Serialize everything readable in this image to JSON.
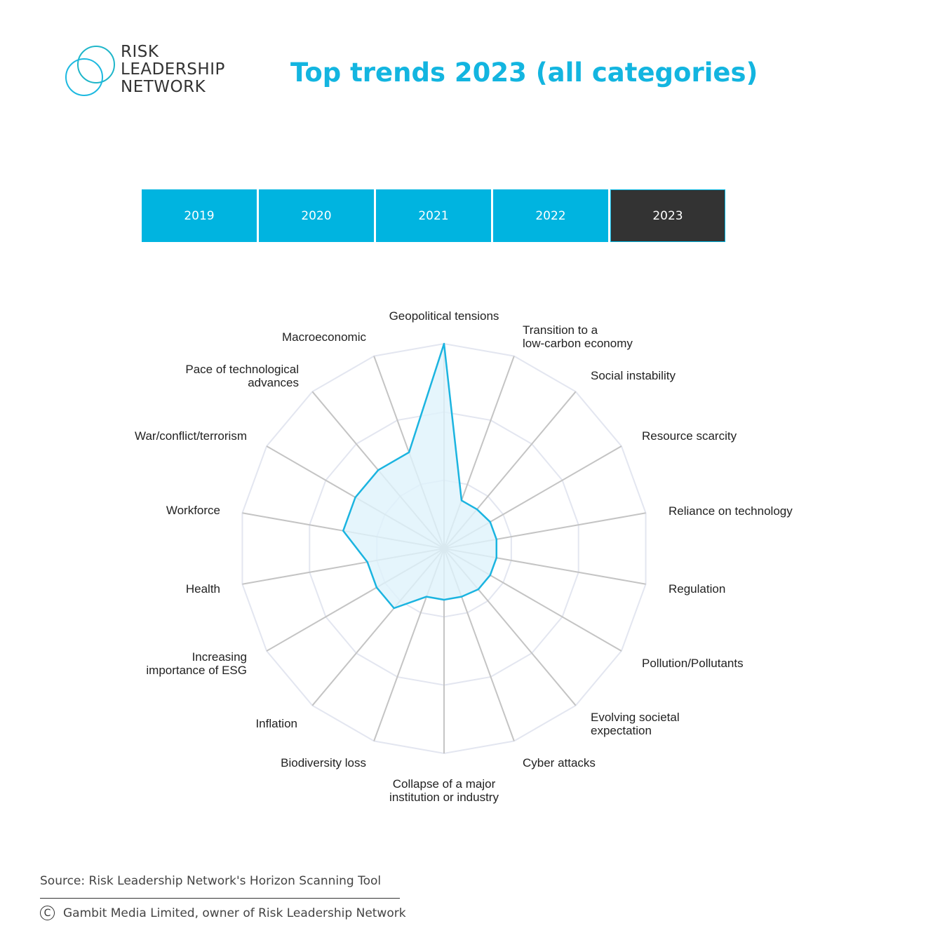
{
  "logo": {
    "lines": [
      "RISK",
      "LEADERSHIP",
      "NETWORK"
    ]
  },
  "header": {
    "title": "Top trends 2023 (all categories)"
  },
  "year_tabs": [
    {
      "label": "2019",
      "active": false
    },
    {
      "label": "2020",
      "active": false
    },
    {
      "label": "2021",
      "active": false
    },
    {
      "label": "2022",
      "active": false
    },
    {
      "label": "2023",
      "active": true
    }
  ],
  "colors": {
    "accent": "#00b4e0",
    "active_tab": "#333333",
    "series_line": "#1bb4e0",
    "series_fill": "#dff2fb",
    "grid_ring": "#e3e6f0",
    "spoke": "#c4c4c4"
  },
  "chart_data": {
    "type": "radar",
    "title": "",
    "categories": [
      [
        "Geopolitical tensions"
      ],
      [
        "Transition to a",
        "low-carbon economy"
      ],
      [
        "Social instability"
      ],
      [
        "Resource scarcity"
      ],
      [
        "Reliance on technology"
      ],
      [
        "Regulation"
      ],
      [
        "Pollution/Pollutants"
      ],
      [
        "Evolving societal",
        "expectation"
      ],
      [
        "Cyber attacks"
      ],
      [
        "Collapse of a major",
        "institution or industry"
      ],
      [
        "Biodiversity loss"
      ],
      [
        "Inflation"
      ],
      [
        "Increasing",
        "importance of ESG"
      ],
      [
        "Health"
      ],
      [
        "Workforce"
      ],
      [
        "War/conflict/terrorism"
      ],
      [
        "Pace of technological",
        "advances"
      ],
      [
        "Macroeconomic"
      ]
    ],
    "values": [
      100,
      25,
      25,
      26,
      26,
      26,
      26,
      26,
      25,
      25,
      25,
      38,
      38,
      38,
      50,
      50,
      50,
      50
    ],
    "range": [
      0,
      100
    ],
    "grid_rings": 3,
    "grid": true,
    "legend": "none"
  },
  "footer": {
    "source": "Source: Risk Leadership Network's Horizon Scanning Tool",
    "copyright_symbol": "C",
    "copyright": "Gambit Media Limited, owner of Risk Leadership Network"
  }
}
